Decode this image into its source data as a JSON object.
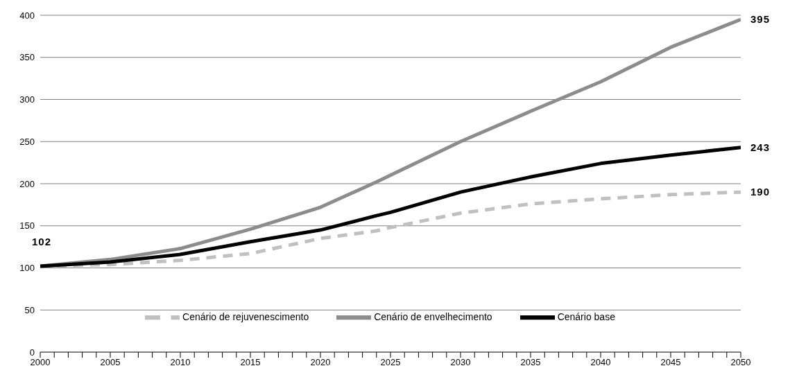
{
  "chart_data": {
    "type": "line",
    "x": [
      2000,
      2005,
      2010,
      2015,
      2020,
      2024,
      2025,
      2030,
      2035,
      2040,
      2045,
      2050
    ],
    "series": [
      {
        "name": "Cenário de rejuvenescimento",
        "color": "#c0c0c0",
        "line_style": "dashed",
        "values": [
          102,
          104,
          109,
          117,
          135,
          144,
          148,
          165,
          176,
          182,
          187,
          190
        ],
        "value_labels": [
          null,
          null,
          null,
          null,
          null,
          null,
          null,
          null,
          null,
          null,
          null,
          "190"
        ]
      },
      {
        "name": "Cenário de envelhecimento",
        "color": "#8c8c8c",
        "line_style": "solid",
        "values": [
          102,
          110,
          123,
          146,
          172,
          202,
          210,
          250,
          286,
          321,
          362,
          395
        ],
        "value_labels": [
          null,
          null,
          null,
          null,
          null,
          null,
          null,
          null,
          null,
          null,
          null,
          "395"
        ]
      },
      {
        "name": "Cenário base",
        "color": "#000000",
        "line_style": "solid",
        "values": [
          102,
          107,
          116,
          131,
          145,
          162,
          166,
          190,
          208,
          224,
          234,
          243
        ],
        "value_labels": [
          "102",
          null,
          null,
          null,
          null,
          null,
          null,
          null,
          null,
          null,
          null,
          "243"
        ]
      }
    ],
    "xlim": [
      2000,
      2050
    ],
    "xticks": [
      2000,
      {
        "value": 2001,
        "label": null
      },
      {
        "value": 2002,
        "label": null
      },
      {
        "value": 2003,
        "label": null
      },
      {
        "value": 2004,
        "label": null
      },
      2005,
      {
        "value": 2006,
        "label": null
      },
      {
        "value": 2007,
        "label": null
      },
      {
        "value": 2008,
        "label": null
      },
      {
        "value": 2009,
        "label": null
      },
      2010,
      {
        "value": 2011,
        "label": null
      },
      {
        "value": 2012,
        "label": null
      },
      {
        "value": 2013,
        "label": null
      },
      {
        "value": 2014,
        "label": null
      },
      2015,
      {
        "value": 2016,
        "label": null
      },
      {
        "value": 2017,
        "label": null
      },
      {
        "value": 2018,
        "label": null
      },
      {
        "value": 2019,
        "label": null
      },
      2020,
      {
        "value": 2021,
        "label": null
      },
      {
        "value": 2022,
        "label": null
      },
      {
        "value": 2023,
        "label": null
      },
      {
        "value": 2024,
        "label": null
      },
      2025,
      {
        "value": 2026,
        "label": null
      },
      {
        "value": 2027,
        "label": null
      },
      {
        "value": 2028,
        "label": null
      },
      {
        "value": 2029,
        "label": null
      },
      2030,
      {
        "value": 2031,
        "label": null
      },
      {
        "value": 2032,
        "label": null
      },
      {
        "value": 2033,
        "label": null
      },
      {
        "value": 2034,
        "label": null
      },
      2035,
      {
        "value": 2036,
        "label": null
      },
      {
        "value": 2037,
        "label": null
      },
      {
        "value": 2038,
        "label": null
      },
      {
        "value": 2039,
        "label": null
      },
      2040,
      {
        "value": 2041,
        "label": null
      },
      {
        "value": 2042,
        "label": null
      },
      {
        "value": 2043,
        "label": null
      },
      {
        "value": 2044,
        "label": null
      },
      2045,
      {
        "value": 2046,
        "label": null
      },
      {
        "value": 2047,
        "label": null
      },
      {
        "value": 2048,
        "label": null
      },
      {
        "value": 2049,
        "label": null
      },
      2050
    ],
    "ylim": [
      0,
      400
    ],
    "yticks": [
      0,
      50,
      100,
      150,
      200,
      250,
      300,
      350,
      400
    ],
    "grid": "y",
    "legend": "bottom",
    "marker": "none"
  }
}
